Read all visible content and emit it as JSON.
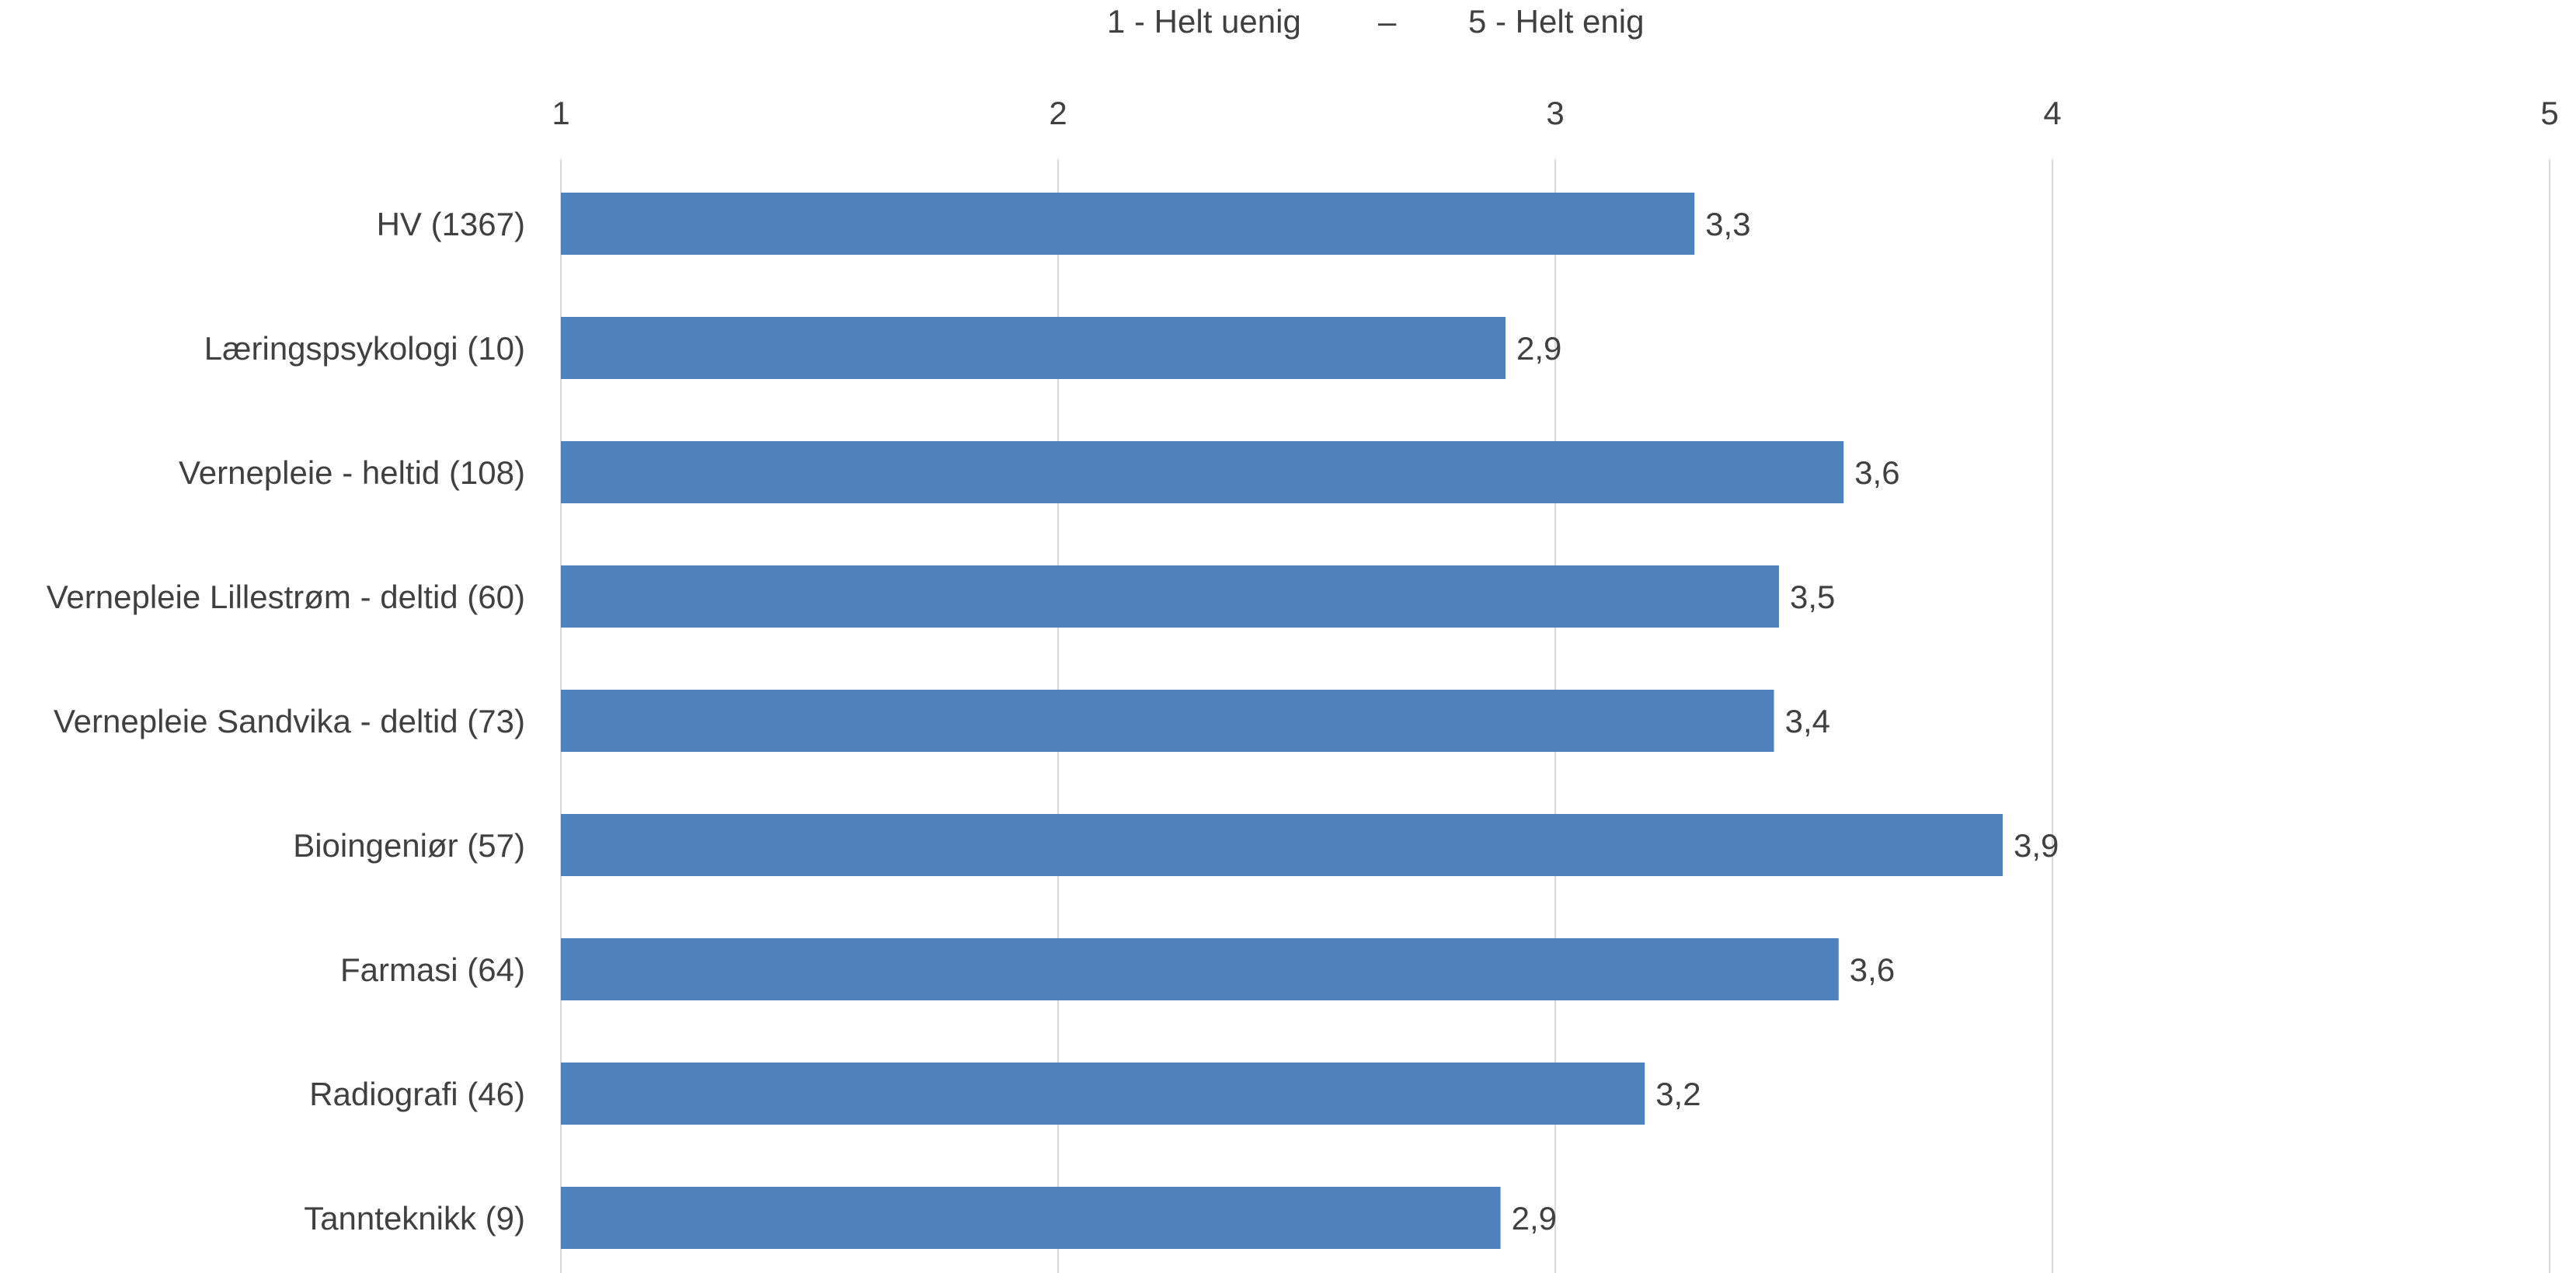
{
  "chart_data": {
    "type": "bar",
    "orientation": "horizontal",
    "scale_labels": {
      "low": "1 - Helt uenig",
      "separator": "–",
      "high": "5 - Helt enig"
    },
    "categories": [
      "HV (1367)",
      "Læringspsykologi (10)",
      "Vernepleie - heltid (108)",
      "Vernepleie Lillestrøm - deltid (60)",
      "Vernepleie Sandvika - deltid (73)",
      "Bioingeniør (57)",
      "Farmasi (64)",
      "Radiografi (46)",
      "Tannteknikk (9)"
    ],
    "values": [
      3.28,
      2.9,
      3.58,
      3.45,
      3.44,
      3.9,
      3.57,
      3.18,
      2.89
    ],
    "value_labels": [
      "3,3",
      "2,9",
      "3,6",
      "3,5",
      "3,4",
      "3,9",
      "3,6",
      "3,2",
      "2,9"
    ],
    "xlim": [
      1,
      5
    ],
    "x_ticks": [
      "1",
      "2",
      "3",
      "4",
      "5"
    ],
    "x_tick_values": [
      1,
      2,
      3,
      4,
      5
    ],
    "x_axis_position": "top",
    "grid": "vertical",
    "bar_color": "#4F81BD",
    "grid_color": "#D9D9D9",
    "text_color": "#404040"
  }
}
